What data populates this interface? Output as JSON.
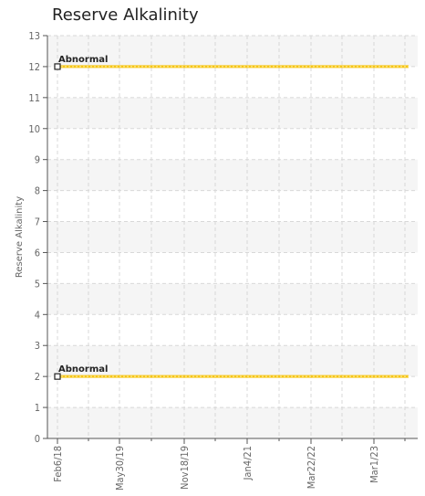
{
  "chart_data": {
    "type": "line",
    "title": "Reserve Alkalinity",
    "ylabel": "Reserve Alkalinity",
    "xlabel": "",
    "ylim": [
      0,
      13
    ],
    "yticks": [
      0,
      1,
      2,
      3,
      4,
      5,
      6,
      7,
      8,
      9,
      10,
      11,
      12,
      13
    ],
    "xtick_labels": [
      "Feb6/18",
      "May30/19",
      "Nov18/19",
      "Jan4/21",
      "Mar22/22",
      "Mar1/23"
    ],
    "grid": true,
    "series": [
      {
        "label": "Abnormal",
        "color": "#f5c518",
        "x": [
          "Feb6/18",
          "end"
        ],
        "y": [
          12,
          12
        ]
      },
      {
        "label": "Abnormal",
        "color": "#f5c518",
        "x": [
          "Feb6/18",
          "end"
        ],
        "y": [
          2,
          2
        ]
      }
    ]
  }
}
